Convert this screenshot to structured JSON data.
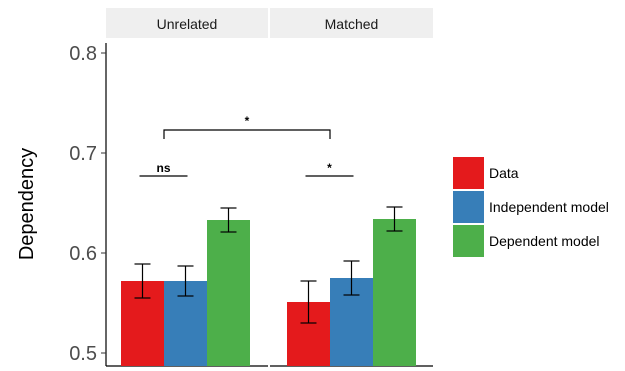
{
  "chart_data": {
    "type": "bar",
    "ylabel": "Dependency",
    "xlabel": "",
    "ylim": [
      0.5,
      0.81
    ],
    "yticks": [
      0.5,
      0.6,
      0.7,
      0.8
    ],
    "ytick_labels": [
      "0.5",
      "0.6",
      "0.7",
      "0.8"
    ],
    "grid": false,
    "legend_position": "right",
    "panels": [
      "Unrelated",
      "Matched"
    ],
    "series": [
      {
        "name": "Data",
        "color": "#e41a1c",
        "values": [
          0.572,
          0.551
        ],
        "errors": [
          0.017,
          0.021
        ]
      },
      {
        "name": "Independent model",
        "color": "#377eb8",
        "values": [
          0.572,
          0.575
        ],
        "errors": [
          0.015,
          0.017
        ]
      },
      {
        "name": "Dependent model",
        "color": "#4daf4a",
        "values": [
          0.633,
          0.634
        ],
        "errors": [
          0.012,
          0.012
        ]
      }
    ],
    "annotations": [
      {
        "label": "ns",
        "type": "within",
        "panel": 0,
        "y": 0.677
      },
      {
        "label": "*",
        "type": "within",
        "panel": 1,
        "y": 0.677
      },
      {
        "label": "*",
        "type": "between",
        "y": 0.723
      }
    ]
  }
}
